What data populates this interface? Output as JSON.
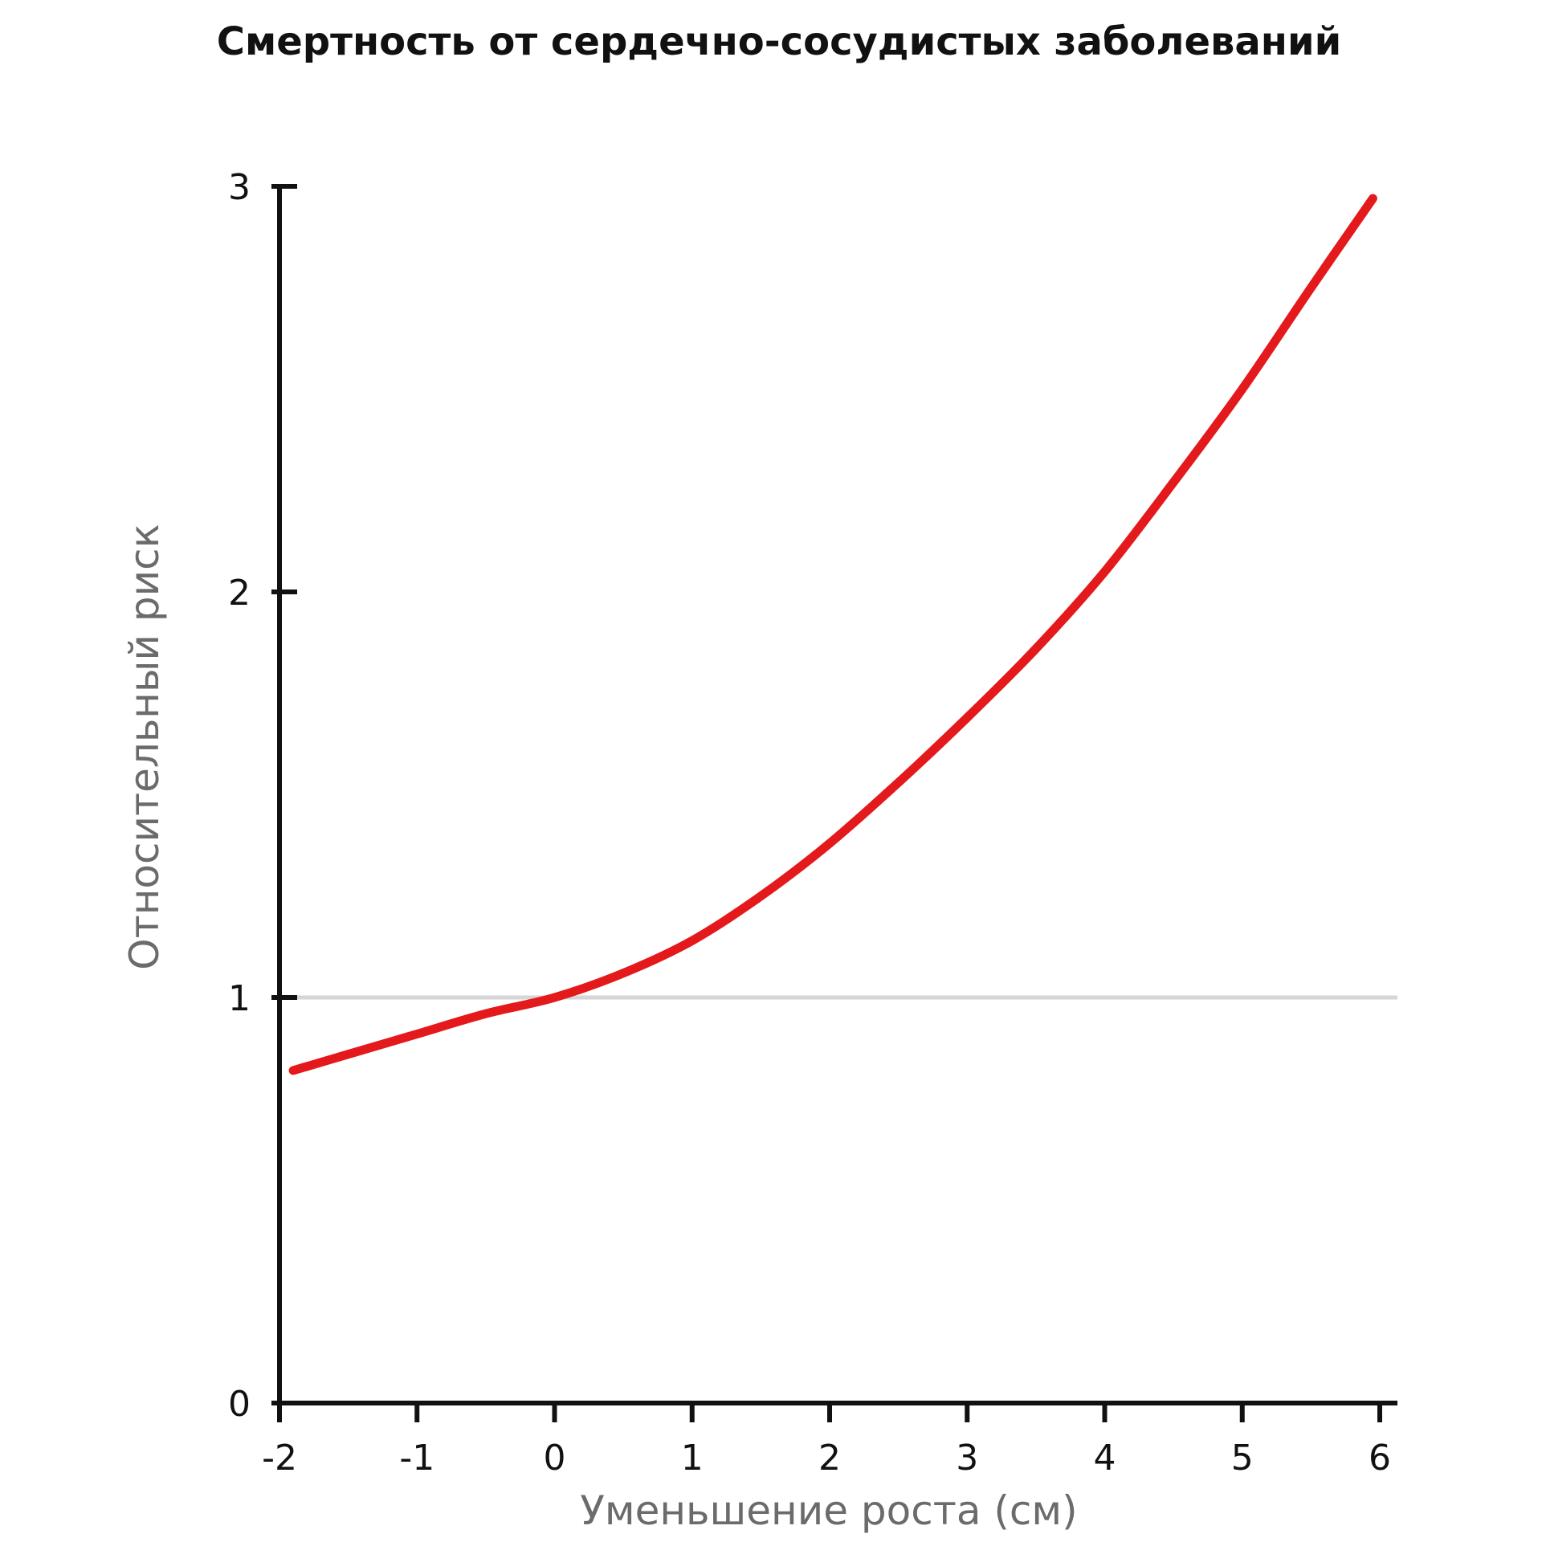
{
  "chart_data": {
    "type": "line",
    "title": "Смертность от сердечно-сосудистых заболеваний",
    "xlabel": "Уменьшение роста (см)",
    "ylabel": "Относительный риск",
    "xlim": [
      -2,
      6
    ],
    "ylim": [
      0,
      3
    ],
    "x_ticks": [
      "-2",
      "-1",
      "0",
      "1",
      "2",
      "3",
      "4",
      "5",
      "6"
    ],
    "y_ticks": [
      "0",
      "1",
      "2",
      "3"
    ],
    "reference_line": {
      "y": 1,
      "color": "#d6d6d6"
    },
    "grid": false,
    "series": [
      {
        "color": "#e3191b",
        "x": [
          -1.9,
          -1.5,
          -1,
          -0.5,
          0,
          0.5,
          1,
          1.5,
          2,
          2.5,
          3,
          3.5,
          4,
          4.5,
          5,
          5.5,
          5.95
        ],
        "y": [
          0.82,
          0.86,
          0.91,
          0.96,
          1.0,
          1.06,
          1.14,
          1.25,
          1.38,
          1.53,
          1.69,
          1.86,
          2.05,
          2.27,
          2.5,
          2.75,
          2.97
        ]
      }
    ]
  },
  "colors": {
    "axis": "#111111",
    "title": "#111111",
    "axis_title": "#6b6b6b"
  }
}
